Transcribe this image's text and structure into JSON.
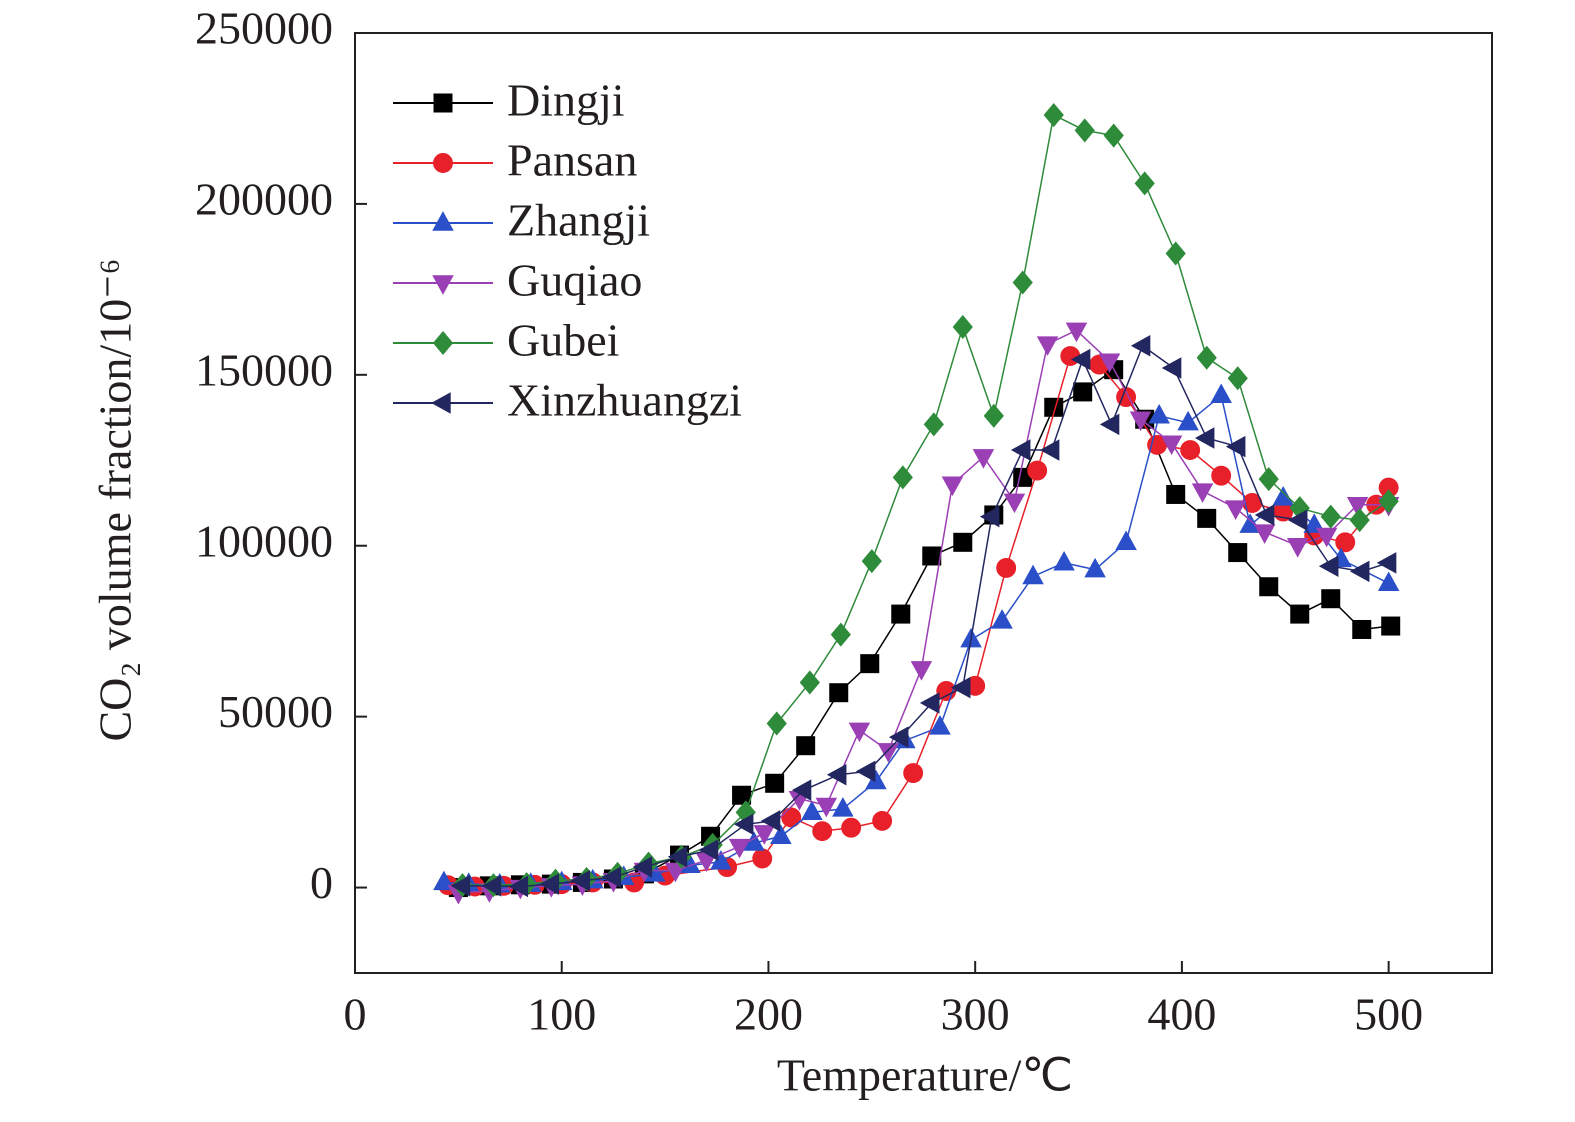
{
  "chart_data": {
    "type": "line",
    "xlabel": "Temperature/℃",
    "ylabel": "CO₂ volume fraction/10⁻⁶",
    "xlim": [
      0,
      550
    ],
    "ylim": [
      -25000,
      250000
    ],
    "xticks": [
      0,
      100,
      200,
      300,
      400,
      500
    ],
    "yticks": [
      0,
      50000,
      100000,
      150000,
      200000,
      250000
    ],
    "legend": "upper left",
    "series": [
      {
        "name": "Dingji",
        "color": "#000000",
        "marker": "square",
        "x": [
          50,
          65,
          80,
          95,
          110,
          125,
          140,
          157,
          172,
          187,
          203,
          218,
          234,
          249,
          264,
          279,
          294,
          309,
          323,
          338,
          352,
          367,
          382,
          397,
          412,
          427,
          442,
          457,
          472,
          487,
          501
        ],
        "values": [
          0,
          500,
          800,
          1000,
          1500,
          2500,
          4000,
          9500,
          15000,
          27000,
          30500,
          41500,
          57000,
          65500,
          80000,
          97000,
          101000,
          109000,
          120000,
          140500,
          145000,
          151500,
          137000,
          115000,
          108000,
          98000,
          88000,
          80000,
          84500,
          75500,
          76500
        ]
      },
      {
        "name": "Pansan",
        "color": "#e8202a",
        "marker": "circle",
        "x": [
          45,
          58,
          72,
          87,
          100,
          115,
          135,
          150,
          180,
          197,
          211,
          226,
          240,
          255,
          270,
          286,
          300,
          315,
          330,
          346,
          360,
          373,
          388,
          404,
          419,
          434,
          449,
          464,
          479,
          494,
          500
        ],
        "values": [
          700,
          300,
          500,
          800,
          1000,
          1500,
          1500,
          3500,
          6000,
          8500,
          20500,
          16500,
          17500,
          19500,
          33500,
          57500,
          59000,
          93500,
          122000,
          155500,
          153000,
          143500,
          129500,
          128000,
          120500,
          112500,
          110000,
          103000,
          101000,
          112000,
          117000
        ]
      },
      {
        "name": "Zhangji",
        "color": "#2a4fc8",
        "marker": "triangle-up",
        "x": [
          43,
          55,
          70,
          85,
          100,
          115,
          130,
          145,
          162,
          177,
          193,
          206,
          221,
          236,
          252,
          266,
          283,
          298,
          313,
          328,
          343,
          358,
          373,
          389,
          403,
          419,
          433,
          449,
          464,
          477,
          500
        ],
        "values": [
          1500,
          1000,
          800,
          1000,
          1500,
          2000,
          3000,
          4000,
          6500,
          7500,
          13000,
          15000,
          22000,
          23000,
          31000,
          43000,
          47000,
          72500,
          78000,
          91000,
          95000,
          93000,
          101000,
          138000,
          136000,
          144000,
          106000,
          114000,
          106000,
          96000,
          89000
        ]
      },
      {
        "name": "Guqiao",
        "color": "#9a3fb4",
        "marker": "triangle-down",
        "x": [
          50,
          65,
          80,
          95,
          110,
          125,
          140,
          155,
          170,
          186,
          198,
          215,
          228,
          244,
          258,
          274,
          289,
          304,
          319,
          335,
          349,
          365,
          380,
          395,
          410,
          426,
          440,
          456,
          470,
          485,
          500
        ],
        "values": [
          -1500,
          -1000,
          0,
          500,
          1000,
          2000,
          5000,
          5000,
          8000,
          12000,
          16000,
          26000,
          24000,
          46000,
          40000,
          64000,
          118000,
          126000,
          113000,
          159000,
          163000,
          154000,
          137000,
          130000,
          116000,
          111000,
          104000,
          100000,
          103000,
          112000,
          112000
        ]
      },
      {
        "name": "Gubei",
        "color": "#2e8b3a",
        "marker": "diamond",
        "x": [
          52,
          67,
          83,
          97,
          112,
          127,
          142,
          158,
          173,
          189,
          204,
          220,
          235,
          250,
          265,
          280,
          294,
          309,
          323,
          338,
          353,
          367,
          382,
          397,
          412,
          427,
          442,
          457,
          472,
          486,
          500
        ],
        "values": [
          700,
          700,
          1000,
          2000,
          2500,
          4000,
          7000,
          9000,
          12500,
          22000,
          48000,
          60000,
          74000,
          95500,
          120000,
          135500,
          164000,
          138000,
          177000,
          226000,
          221500,
          220000,
          206000,
          185500,
          155000,
          149000,
          119500,
          111000,
          108500,
          107500,
          113000
        ]
      },
      {
        "name": "Xinzhuangzi",
        "color": "#23275f",
        "marker": "triangle-left",
        "x": [
          52,
          67,
          80,
          95,
          110,
          125,
          140,
          157,
          172,
          189,
          202,
          217,
          234,
          248,
          264,
          279,
          294,
          308,
          323,
          337,
          352,
          366,
          381,
          396,
          412,
          427,
          441,
          457,
          472,
          487,
          500
        ],
        "values": [
          500,
          500,
          300,
          1000,
          2000,
          3000,
          6000,
          9000,
          11000,
          18500,
          19500,
          28500,
          33000,
          34000,
          44000,
          54000,
          58500,
          108500,
          128000,
          128000,
          154500,
          135500,
          158500,
          152000,
          131500,
          129000,
          109000,
          107500,
          94000,
          92500,
          95000
        ]
      }
    ]
  }
}
